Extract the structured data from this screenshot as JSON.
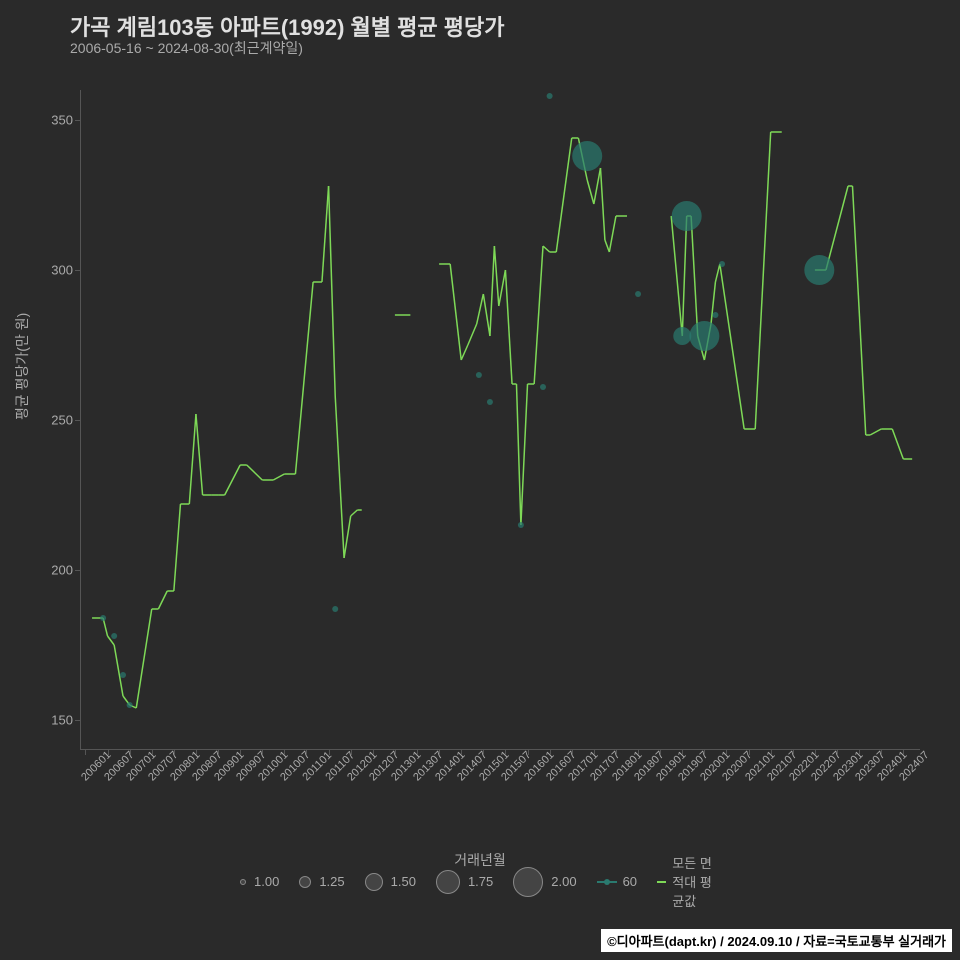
{
  "title": "가곡 계림103동 아파트(1992) 월별 평균 평당가",
  "subtitle": "2006-05-16 ~ 2024-08-30(최근계약일)",
  "ylabel": "평균 평당가(만 원)",
  "xlabel": "거래년월",
  "footer": "©디아파트(dapt.kr) / 2024.09.10 / 자료=국토교통부 실거래가",
  "chart": {
    "type": "scatter+line",
    "background_color": "#2a2a2a",
    "text_color": "#aaaaaa",
    "title_color": "#e0e0e0",
    "title_fontsize": 22,
    "subtitle_fontsize": 14,
    "label_fontsize": 14,
    "tick_fontsize": 12,
    "axis_color": "#555555",
    "ylim": [
      140,
      360
    ],
    "yticks": [
      150,
      200,
      250,
      300,
      350
    ],
    "x_categories": [
      "200601",
      "200607",
      "200701",
      "200707",
      "200801",
      "200807",
      "200901",
      "200907",
      "201001",
      "201007",
      "201101",
      "201107",
      "201201",
      "201207",
      "201301",
      "201307",
      "201401",
      "201407",
      "201501",
      "201507",
      "201601",
      "201607",
      "201701",
      "201707",
      "201801",
      "201807",
      "201901",
      "201907",
      "202001",
      "202007",
      "202101",
      "202107",
      "202201",
      "202207",
      "202301",
      "202307",
      "202401",
      "202407"
    ],
    "line_series": {
      "name": "모든 면적대 평균값",
      "color": "#7ed957",
      "width": 1.5,
      "data": [
        {
          "x": 0.3,
          "y": 184
        },
        {
          "x": 0.8,
          "y": 184
        },
        {
          "x": 1.0,
          "y": 178
        },
        {
          "x": 1.3,
          "y": 175
        },
        {
          "x": 1.7,
          "y": 158
        },
        {
          "x": 2.0,
          "y": 155
        },
        {
          "x": 2.3,
          "y": 154
        },
        {
          "x": 3.0,
          "y": 187
        },
        {
          "x": 3.3,
          "y": 187
        },
        {
          "x": 3.7,
          "y": 193
        },
        {
          "x": 4.0,
          "y": 193
        },
        {
          "x": 4.3,
          "y": 222
        },
        {
          "x": 4.7,
          "y": 222
        },
        {
          "x": 5.0,
          "y": 252
        },
        {
          "x": 5.3,
          "y": 225
        },
        {
          "x": 5.7,
          "y": 225
        },
        {
          "x": 6.0,
          "y": 225
        },
        {
          "x": 6.3,
          "y": 225
        },
        {
          "x": 7.0,
          "y": 235
        },
        {
          "x": 7.3,
          "y": 235
        },
        {
          "x": 8.0,
          "y": 230
        },
        {
          "x": 8.5,
          "y": 230
        },
        {
          "x": 9.0,
          "y": 232
        },
        {
          "x": 9.5,
          "y": 232
        },
        {
          "x": 10.3,
          "y": 296
        },
        {
          "x": 10.7,
          "y": 296
        },
        {
          "x": 11.0,
          "y": 328
        },
        {
          "x": 11.3,
          "y": 258
        },
        {
          "x": 11.7,
          "y": 204
        },
        {
          "x": 12.0,
          "y": 218
        },
        {
          "x": 12.3,
          "y": 220
        },
        {
          "x": 12.5,
          "y": 220
        },
        {
          "x": 14.0,
          "y": 285
        },
        {
          "x": 14.7,
          "y": 285
        },
        {
          "x": 16.0,
          "y": 302
        },
        {
          "x": 16.5,
          "y": 302
        },
        {
          "x": 17.0,
          "y": 270
        },
        {
          "x": 17.3,
          "y": 275
        },
        {
          "x": 17.7,
          "y": 282
        },
        {
          "x": 18.0,
          "y": 292
        },
        {
          "x": 18.3,
          "y": 278
        },
        {
          "x": 18.5,
          "y": 308
        },
        {
          "x": 18.7,
          "y": 288
        },
        {
          "x": 19.0,
          "y": 300
        },
        {
          "x": 19.3,
          "y": 262
        },
        {
          "x": 19.5,
          "y": 262
        },
        {
          "x": 19.7,
          "y": 215
        },
        {
          "x": 20.0,
          "y": 262
        },
        {
          "x": 20.3,
          "y": 262
        },
        {
          "x": 20.7,
          "y": 308
        },
        {
          "x": 21.0,
          "y": 306
        },
        {
          "x": 21.3,
          "y": 306
        },
        {
          "x": 22.0,
          "y": 344
        },
        {
          "x": 22.3,
          "y": 344
        },
        {
          "x": 22.7,
          "y": 330
        },
        {
          "x": 23.0,
          "y": 322
        },
        {
          "x": 23.3,
          "y": 334
        },
        {
          "x": 23.5,
          "y": 310
        },
        {
          "x": 23.7,
          "y": 306
        },
        {
          "x": 24.0,
          "y": 318
        },
        {
          "x": 24.5,
          "y": 318
        },
        {
          "x": 26.5,
          "y": 318
        },
        {
          "x": 27.0,
          "y": 278
        },
        {
          "x": 27.2,
          "y": 318
        },
        {
          "x": 27.4,
          "y": 318
        },
        {
          "x": 27.7,
          "y": 278
        },
        {
          "x": 28.0,
          "y": 270
        },
        {
          "x": 28.3,
          "y": 282
        },
        {
          "x": 28.5,
          "y": 296
        },
        {
          "x": 28.7,
          "y": 302
        },
        {
          "x": 29.8,
          "y": 247
        },
        {
          "x": 30.3,
          "y": 247
        },
        {
          "x": 31.0,
          "y": 346
        },
        {
          "x": 31.5,
          "y": 346
        },
        {
          "x": 33.0,
          "y": 300
        },
        {
          "x": 33.5,
          "y": 300
        },
        {
          "x": 34.5,
          "y": 328
        },
        {
          "x": 34.7,
          "y": 328
        },
        {
          "x": 35.0,
          "y": 287
        },
        {
          "x": 35.3,
          "y": 245
        },
        {
          "x": 35.5,
          "y": 245
        },
        {
          "x": 36.0,
          "y": 247
        },
        {
          "x": 36.5,
          "y": 247
        },
        {
          "x": 37.0,
          "y": 237
        },
        {
          "x": 37.4,
          "y": 237
        }
      ]
    },
    "scatter_series": {
      "name": "60",
      "color": "#2a7a6f",
      "fill_opacity": 0.7,
      "data": [
        {
          "x": 0.8,
          "y": 184,
          "size": 1.0
        },
        {
          "x": 1.3,
          "y": 178,
          "size": 1.0
        },
        {
          "x": 1.7,
          "y": 165,
          "size": 1.0
        },
        {
          "x": 2.0,
          "y": 155,
          "size": 1.0
        },
        {
          "x": 11.3,
          "y": 187,
          "size": 1.0
        },
        {
          "x": 17.8,
          "y": 265,
          "size": 1.0
        },
        {
          "x": 18.3,
          "y": 256,
          "size": 1.0
        },
        {
          "x": 19.7,
          "y": 215,
          "size": 1.0
        },
        {
          "x": 20.7,
          "y": 261,
          "size": 1.0
        },
        {
          "x": 21.0,
          "y": 358,
          "size": 1.0
        },
        {
          "x": 22.7,
          "y": 338,
          "size": 2.0
        },
        {
          "x": 25.0,
          "y": 292,
          "size": 1.0
        },
        {
          "x": 27.2,
          "y": 318,
          "size": 2.0
        },
        {
          "x": 27.0,
          "y": 278,
          "size": 1.5
        },
        {
          "x": 28.0,
          "y": 278,
          "size": 2.0
        },
        {
          "x": 28.5,
          "y": 285,
          "size": 1.0
        },
        {
          "x": 28.8,
          "y": 302,
          "size": 1.0
        },
        {
          "x": 33.2,
          "y": 300,
          "size": 2.0
        }
      ]
    },
    "legend": {
      "sizes": [
        {
          "label": "1.00",
          "size": 1.0
        },
        {
          "label": "1.25",
          "size": 1.25
        },
        {
          "label": "1.50",
          "size": 1.5
        },
        {
          "label": "1.75",
          "size": 1.75
        },
        {
          "label": "2.00",
          "size": 2.0
        }
      ],
      "series": [
        {
          "label": "60",
          "color": "#2a7a6f",
          "type": "point"
        },
        {
          "label": "모든 면적대 평균값",
          "color": "#7ed957",
          "type": "line"
        }
      ]
    }
  }
}
